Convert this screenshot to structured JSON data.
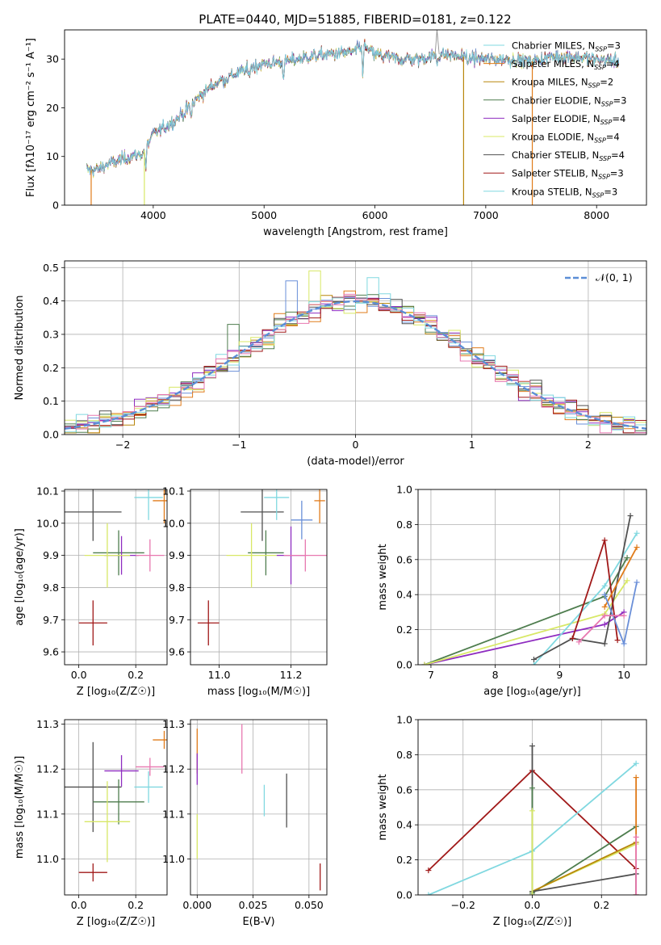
{
  "figure_title": "PLATE=0440, MJD=51885, FIBERID=0181, z=0.122",
  "colors": {
    "chabrier_miles": "#6a8fd8",
    "salpeter_miles": "#e07b1a",
    "kroupa_miles": "#b8860b",
    "chabrier_elodie": "#4e7d4e",
    "salpeter_elodie": "#8e2cc0",
    "kroupa_elodie": "#d8e866",
    "chabrier_stelib": "#505050",
    "salpeter_stelib": "#a01818",
    "kroupa_stelib": "#80d8e0",
    "pink": "#e878b0",
    "gaussian": "#5b8ed6"
  },
  "chart_data": [
    {
      "id": "spectrum",
      "type": "line",
      "xlabel": "wavelength [Angstrom, rest frame]",
      "ylabel": "Flux [fλ10⁻¹⁷ erg cm⁻² s⁻¹ A⁻¹]",
      "xlim": [
        3200,
        8450
      ],
      "ylim": [
        0,
        36
      ],
      "xticks": [
        4000,
        5000,
        6000,
        7000,
        8000
      ],
      "yticks": [
        0,
        10,
        20,
        30
      ],
      "grid": false,
      "legend_position": "top-right",
      "legend": [
        {
          "label": "Chabrier MILES, N",
          "sub": "SSP",
          "tail": "=3",
          "color_key": "kroupa_stelib"
        },
        {
          "label": "Salpeter MILES, N",
          "sub": "SSP",
          "tail": "=4",
          "color_key": "salpeter_miles"
        },
        {
          "label": "Kroupa MILES, N",
          "sub": "SSP",
          "tail": "=2",
          "color_key": "kroupa_miles"
        },
        {
          "label": "Chabrier ELODIE, N",
          "sub": "SSP",
          "tail": "=3",
          "color_key": "chabrier_elodie"
        },
        {
          "label": "Salpeter ELODIE, N",
          "sub": "SSP",
          "tail": "=4",
          "color_key": "salpeter_elodie"
        },
        {
          "label": "Kroupa ELODIE, N",
          "sub": "SSP",
          "tail": "=4",
          "color_key": "kroupa_elodie"
        },
        {
          "label": "Chabrier STELIB, N",
          "sub": "SSP",
          "tail": "=4",
          "color_key": "chabrier_stelib"
        },
        {
          "label": "Salpeter STELIB, N",
          "sub": "SSP",
          "tail": "=3",
          "color_key": "salpeter_stelib"
        },
        {
          "label": "Kroupa STELIB, N",
          "sub": "SSP",
          "tail": "=3",
          "color_key": "kroupa_stelib"
        }
      ],
      "continuum": [
        [
          3400,
          7.2
        ],
        [
          3500,
          7.3
        ],
        [
          3600,
          8.5
        ],
        [
          3700,
          9.2
        ],
        [
          3800,
          10.0
        ],
        [
          3900,
          10.5
        ],
        [
          4000,
          14.5
        ],
        [
          4100,
          16.0
        ],
        [
          4200,
          17.5
        ],
        [
          4300,
          19.5
        ],
        [
          4400,
          22.0
        ],
        [
          4500,
          24.0
        ],
        [
          4600,
          25.5
        ],
        [
          4700,
          26.5
        ],
        [
          4800,
          27.5
        ],
        [
          4900,
          28.5
        ],
        [
          5000,
          29.0
        ],
        [
          5200,
          29.5
        ],
        [
          5400,
          30.5
        ],
        [
          5600,
          31.0
        ],
        [
          5800,
          31.5
        ],
        [
          5900,
          32.5
        ],
        [
          6000,
          31.0
        ],
        [
          6200,
          30.0
        ],
        [
          6400,
          30.0
        ],
        [
          6600,
          31.0
        ],
        [
          6800,
          30.5
        ],
        [
          7000,
          30.0
        ],
        [
          7200,
          30.0
        ],
        [
          7400,
          29.5
        ],
        [
          7600,
          30.5
        ],
        [
          7800,
          30.5
        ],
        [
          8000,
          30.0
        ],
        [
          8200,
          29.5
        ]
      ],
      "absorption": [
        [
          3933,
          5.0
        ],
        [
          4340,
          3.0
        ],
        [
          4861,
          2.0
        ],
        [
          5175,
          3.0
        ],
        [
          5890,
          5.0
        ],
        [
          6563,
          2.0
        ],
        [
          6850,
          2.0
        ]
      ],
      "model_dropouts": [
        {
          "x": 3440,
          "color_key": "salpeter_miles"
        },
        {
          "x": 3920,
          "color_key": "kroupa_elodie"
        },
        {
          "x": 6800,
          "color_key": "kroupa_miles"
        },
        {
          "x": 7420,
          "color_key": "salpeter_miles"
        }
      ],
      "spike": {
        "x": 6560,
        "y": 36
      }
    },
    {
      "id": "residuals",
      "type": "histogram",
      "xlabel": "(data-model)/error",
      "ylabel": "Normed distribution",
      "xlim": [
        -2.5,
        2.5
      ],
      "ylim": [
        0,
        0.52
      ],
      "xticks": [
        -2,
        -1,
        0,
        1,
        2
      ],
      "yticks": [
        0.0,
        0.1,
        0.2,
        0.3,
        0.4,
        0.5
      ],
      "grid": true,
      "legend_position": "top-right",
      "legend": [
        {
          "label": "𝒩(0, 1)",
          "color_key": "gaussian"
        }
      ],
      "bin_width": 0.1,
      "bin_start": -2.5,
      "outliers": [
        {
          "x": -0.35,
          "y": 0.49,
          "color_key": "kroupa_elodie"
        },
        {
          "x": 0.15,
          "y": 0.47,
          "color_key": "kroupa_stelib"
        },
        {
          "x": -0.55,
          "y": 0.46,
          "color_key": "chabrier_miles"
        },
        {
          "x": -1.05,
          "y": 0.33,
          "color_key": "chabrier_elodie"
        }
      ]
    },
    {
      "id": "age_vs_Z",
      "type": "errorbar",
      "xlabel": "Z [log₁₀(Z/Z☉)]",
      "ylabel": "age [log₁₀(age/yr)]",
      "xlim": [
        -0.05,
        0.31
      ],
      "ylim": [
        9.56,
        10.105
      ],
      "xticks": [
        0.0,
        0.2
      ],
      "yticks": [
        9.6,
        9.7,
        9.8,
        9.9,
        10.0,
        10.1
      ],
      "grid": true,
      "points": [
        {
          "x": 0.05,
          "xerr": 0.1,
          "y": 10.035,
          "yerr": 0.09,
          "color_key": "chabrier_stelib"
        },
        {
          "x": 0.245,
          "xerr": 0.05,
          "y": 10.08,
          "yerr": 0.07,
          "color_key": "kroupa_stelib"
        },
        {
          "x": 0.3,
          "xerr": 0.04,
          "y": 10.07,
          "yerr": 0.07,
          "color_key": "salpeter_miles"
        },
        {
          "x": 0.14,
          "xerr": 0.09,
          "y": 9.908,
          "yerr": 0.07,
          "color_key": "chabrier_elodie"
        },
        {
          "x": 0.15,
          "xerr": 0.06,
          "y": 9.9,
          "yerr": 0.06,
          "color_key": "salpeter_elodie"
        },
        {
          "x": 0.1,
          "xerr": 0.08,
          "y": 9.9,
          "yerr": 0.1,
          "color_key": "kroupa_elodie"
        },
        {
          "x": 0.25,
          "xerr": 0.05,
          "y": 9.9,
          "yerr": 0.05,
          "color_key": "pink"
        },
        {
          "x": 0.05,
          "xerr": 0.05,
          "y": 9.69,
          "yerr": 0.07,
          "color_key": "salpeter_stelib"
        }
      ]
    },
    {
      "id": "age_vs_mass",
      "type": "errorbar",
      "xlabel": "mass [log₁₀(M/M☉)]",
      "ylabel": "",
      "xlim": [
        10.92,
        11.3
      ],
      "ylim": [
        9.56,
        10.105
      ],
      "xticks": [
        11.0,
        11.2
      ],
      "yticks": [
        9.6,
        9.7,
        9.8,
        9.9,
        10.0,
        10.1
      ],
      "grid": true,
      "points": [
        {
          "x": 11.12,
          "xerr": 0.06,
          "y": 10.035,
          "yerr": 0.09,
          "color_key": "chabrier_stelib"
        },
        {
          "x": 11.16,
          "xerr": 0.035,
          "y": 10.08,
          "yerr": 0.07,
          "color_key": "kroupa_stelib"
        },
        {
          "x": 11.28,
          "xerr": 0.015,
          "y": 10.07,
          "yerr": 0.07,
          "color_key": "salpeter_miles"
        },
        {
          "x": 11.23,
          "xerr": 0.03,
          "y": 10.01,
          "yerr": 0.06,
          "color_key": "chabrier_miles"
        },
        {
          "x": 11.13,
          "xerr": 0.05,
          "y": 9.908,
          "yerr": 0.07,
          "color_key": "chabrier_elodie"
        },
        {
          "x": 11.2,
          "xerr": 0.04,
          "y": 9.9,
          "yerr": 0.09,
          "color_key": "salpeter_elodie"
        },
        {
          "x": 11.09,
          "xerr": 0.07,
          "y": 9.9,
          "yerr": 0.1,
          "color_key": "kroupa_elodie"
        },
        {
          "x": 11.24,
          "xerr": 0.06,
          "y": 9.9,
          "yerr": 0.05,
          "color_key": "pink"
        },
        {
          "x": 10.97,
          "xerr": 0.03,
          "y": 9.69,
          "yerr": 0.07,
          "color_key": "salpeter_stelib"
        }
      ]
    },
    {
      "id": "mass_weight_vs_age",
      "type": "line",
      "xlabel": "age [log₁₀(age/yr)]",
      "ylabel": "mass weight",
      "xlim": [
        6.8,
        10.35
      ],
      "ylim": [
        0,
        1.0
      ],
      "xticks": [
        7,
        8,
        9,
        10
      ],
      "yticks": [
        0.0,
        0.2,
        0.4,
        0.6,
        0.8,
        1.0
      ],
      "grid": true,
      "series": [
        {
          "color_key": "chabrier_elodie",
          "x": [
            6.9,
            9.7,
            10.05
          ],
          "y": [
            0.0,
            0.39,
            0.61
          ]
        },
        {
          "color_key": "salpeter_elodie",
          "x": [
            6.9,
            9.7,
            10.0
          ],
          "y": [
            0.0,
            0.23,
            0.3
          ]
        },
        {
          "color_key": "kroupa_elodie",
          "x": [
            6.9,
            9.7,
            10.05
          ],
          "y": [
            0.0,
            0.29,
            0.48
          ]
        },
        {
          "color_key": "kroupa_stelib",
          "x": [
            8.6,
            9.7,
            10.2
          ],
          "y": [
            0.0,
            0.45,
            0.75
          ]
        },
        {
          "color_key": "chabrier_stelib",
          "x": [
            8.6,
            9.2,
            9.7,
            10.1
          ],
          "y": [
            0.03,
            0.15,
            0.12,
            0.85
          ]
        },
        {
          "color_key": "salpeter_stelib",
          "x": [
            9.2,
            9.7,
            9.9
          ],
          "y": [
            0.15,
            0.71,
            0.14
          ]
        },
        {
          "color_key": "salpeter_miles",
          "x": [
            9.7,
            10.2
          ],
          "y": [
            0.33,
            0.67
          ]
        },
        {
          "color_key": "chabrier_miles",
          "x": [
            9.7,
            10.0,
            10.2
          ],
          "y": [
            0.4,
            0.12,
            0.47
          ]
        },
        {
          "color_key": "pink",
          "x": [
            9.3,
            9.7,
            10.0
          ],
          "y": [
            0.13,
            0.28,
            0.28
          ]
        }
      ]
    },
    {
      "id": "mass_vs_Z",
      "type": "errorbar",
      "xlabel": "Z [log₁₀(Z/Z☉)]",
      "ylabel": "mass [log₁₀(M/M☉)]",
      "xlim": [
        -0.05,
        0.31
      ],
      "ylim": [
        10.92,
        11.31
      ],
      "xticks": [
        0.0,
        0.2
      ],
      "yticks": [
        11.0,
        11.1,
        11.2,
        11.3
      ],
      "grid": true,
      "points": [
        {
          "x": 0.05,
          "xerr": 0.1,
          "y": 11.16,
          "yerr": 0.1,
          "color_key": "chabrier_stelib"
        },
        {
          "x": 0.14,
          "xerr": 0.09,
          "y": 11.127,
          "yerr": 0.05,
          "color_key": "chabrier_elodie"
        },
        {
          "x": 0.15,
          "xerr": 0.06,
          "y": 11.196,
          "yerr": 0.035,
          "color_key": "salpeter_elodie"
        },
        {
          "x": 0.1,
          "xerr": 0.08,
          "y": 11.083,
          "yerr": 0.09,
          "color_key": "kroupa_elodie"
        },
        {
          "x": 0.245,
          "xerr": 0.05,
          "y": 11.16,
          "yerr": 0.035,
          "color_key": "kroupa_stelib"
        },
        {
          "x": 0.3,
          "xerr": 0.04,
          "y": 11.265,
          "yerr": 0.02,
          "color_key": "salpeter_miles"
        },
        {
          "x": 0.25,
          "xerr": 0.05,
          "y": 11.205,
          "yerr": 0.02,
          "color_key": "pink"
        },
        {
          "x": 0.05,
          "xerr": 0.05,
          "y": 10.97,
          "yerr": 0.02,
          "color_key": "salpeter_stelib"
        }
      ]
    },
    {
      "id": "mass_vs_EBV",
      "type": "errorbar",
      "xlabel": "E(B-V)",
      "ylabel": "",
      "xlim": [
        -0.003,
        0.058
      ],
      "ylim": [
        10.92,
        11.31
      ],
      "xticks": [
        0.0,
        0.025,
        0.05
      ],
      "xtick_labels": [
        "0.000",
        "0.025",
        "0.050"
      ],
      "yticks": [
        11.0,
        11.1,
        11.2,
        11.3
      ],
      "grid": true,
      "points": [
        {
          "x": 0.0,
          "xerr": 0,
          "y": 11.24,
          "yerr": 0.05,
          "color_key": "salpeter_miles"
        },
        {
          "x": 0.0,
          "xerr": 0,
          "y": 11.2,
          "yerr": 0.035,
          "color_key": "salpeter_elodie"
        },
        {
          "x": 0.0,
          "xerr": 0,
          "y": 11.05,
          "yerr": 0.05,
          "color_key": "kroupa_elodie"
        },
        {
          "x": 0.02,
          "xerr": 0,
          "y": 11.245,
          "yerr": 0.055,
          "color_key": "pink"
        },
        {
          "x": 0.03,
          "xerr": 0,
          "y": 11.13,
          "yerr": 0.035,
          "color_key": "kroupa_stelib"
        },
        {
          "x": 0.04,
          "xerr": 0,
          "y": 11.13,
          "yerr": 0.06,
          "color_key": "chabrier_stelib"
        },
        {
          "x": 0.055,
          "xerr": 0,
          "y": 10.96,
          "yerr": 0.03,
          "color_key": "salpeter_stelib"
        }
      ]
    },
    {
      "id": "mass_weight_vs_Z",
      "type": "line",
      "xlabel": "Z [log₁₀(Z/Z☉)]",
      "ylabel": "mass weight",
      "xlim": [
        -0.33,
        0.33
      ],
      "ylim": [
        0,
        1.0
      ],
      "xticks": [
        -0.2,
        0.0,
        0.2
      ],
      "yticks": [
        0.0,
        0.2,
        0.4,
        0.6,
        0.8,
        1.0
      ],
      "grid": true,
      "series": [
        {
          "color_key": "salpeter_stelib",
          "x": [
            -0.3,
            0.0,
            0.3
          ],
          "y": [
            0.14,
            0.71,
            0.15
          ]
        },
        {
          "color_key": "kroupa_stelib",
          "x": [
            -0.3,
            0.0,
            0.3
          ],
          "y": [
            0.0,
            0.25,
            0.75
          ]
        },
        {
          "color_key": "chabrier_elodie",
          "x": [
            0.0,
            0.3
          ],
          "y": [
            0.01,
            0.39
          ]
        },
        {
          "color_key": "kroupa_elodie",
          "x": [
            0.0,
            0.3
          ],
          "y": [
            0.02,
            0.29
          ]
        },
        {
          "color_key": "kroupa_miles",
          "x": [
            0.0,
            0.3
          ],
          "y": [
            0.02,
            0.3
          ]
        },
        {
          "color_key": "chabrier_stelib",
          "x": [
            0.0,
            0.3
          ],
          "y": [
            0.02,
            0.12
          ]
        },
        {
          "color_key": "chabrier_stelib",
          "x": [
            0.0,
            0.0
          ],
          "y": [
            0.0,
            0.85
          ]
        },
        {
          "color_key": "chabrier_elodie",
          "x": [
            0.0,
            0.0
          ],
          "y": [
            0.0,
            0.61
          ]
        },
        {
          "color_key": "kroupa_elodie",
          "x": [
            0.0,
            0.0
          ],
          "y": [
            0.0,
            0.48
          ]
        },
        {
          "color_key": "salpeter_miles",
          "x": [
            0.3,
            0.3
          ],
          "y": [
            0.0,
            0.67
          ]
        },
        {
          "color_key": "chabrier_stelib",
          "x": [
            0.3,
            0.3
          ],
          "y": [
            0.0,
            0.12
          ]
        },
        {
          "color_key": "pink",
          "x": [
            0.3,
            0.3
          ],
          "y": [
            0.0,
            0.33
          ]
        }
      ]
    }
  ]
}
